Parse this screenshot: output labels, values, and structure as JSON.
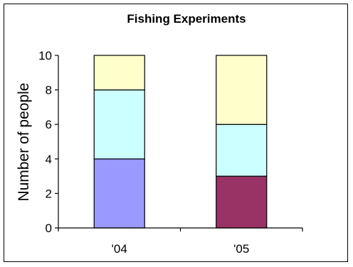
{
  "chart_data": {
    "type": "bar",
    "stacked": true,
    "title": "Fishing Experiments",
    "xlabel": "",
    "ylabel": "Number of people",
    "ylim": [
      0,
      10
    ],
    "yticks": [
      0,
      2,
      4,
      6,
      8,
      10
    ],
    "grid": false,
    "legend": "none",
    "categories": [
      "'04",
      "'05"
    ],
    "segments": [
      [
        {
          "value": 4,
          "color": "#9999ff"
        },
        {
          "value": 4,
          "color": "#ccffff"
        },
        {
          "value": 2,
          "color": "#ffffcc"
        }
      ],
      [
        {
          "value": 3,
          "color": "#993366"
        },
        {
          "value": 3,
          "color": "#ccffff"
        },
        {
          "value": 4,
          "color": "#ffffcc"
        }
      ]
    ]
  }
}
